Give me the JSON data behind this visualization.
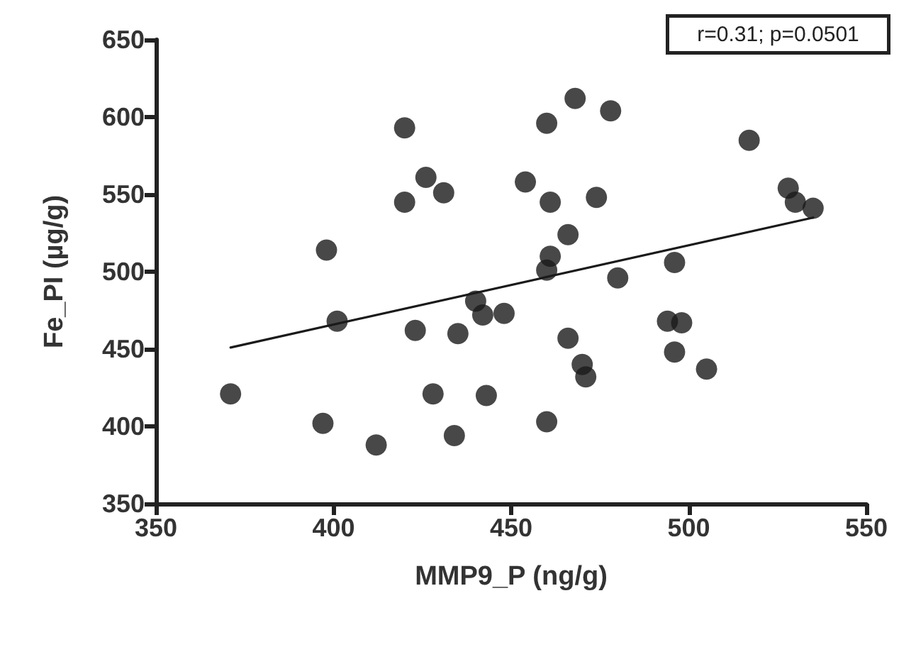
{
  "chart_data": {
    "type": "scatter",
    "xlabel": "MMP9_P (ng/g)",
    "ylabel": "Fe_PI (µg/g)",
    "annotations": [
      "r=0.31; p=0.0501"
    ],
    "xlim": [
      350,
      550
    ],
    "xticks": [
      350,
      400,
      450,
      500,
      550
    ],
    "ylim": [
      350,
      650
    ],
    "yticks": [
      350,
      400,
      450,
      500,
      550,
      600,
      650
    ],
    "grid": false,
    "marker": "circle",
    "series": [
      {
        "color": "#1a1a1a",
        "x": [
          371,
          397,
          398,
          401,
          412,
          420,
          420,
          423,
          426,
          431,
          428,
          434,
          435,
          440,
          442,
          448,
          443,
          454,
          460,
          461,
          461,
          460,
          460,
          468,
          478,
          466,
          474,
          466,
          470,
          471,
          480,
          496,
          494,
          498,
          496,
          505,
          517,
          528,
          530,
          535
        ],
        "values": [
          421,
          402,
          514,
          468,
          388,
          593,
          545,
          462,
          561,
          551,
          421,
          394,
          460,
          481,
          472,
          473,
          420,
          558,
          596,
          545,
          510,
          501,
          403,
          612,
          604,
          524,
          548,
          457,
          440,
          432,
          496,
          506,
          468,
          467,
          448,
          437,
          585,
          554,
          545,
          541
        ]
      },
      {
        "type": "line",
        "color": "#1a1a1a",
        "marker": "none",
        "line_style": "solid",
        "x": [
          371,
          535
        ],
        "values": [
          451,
          535
        ]
      }
    ]
  }
}
